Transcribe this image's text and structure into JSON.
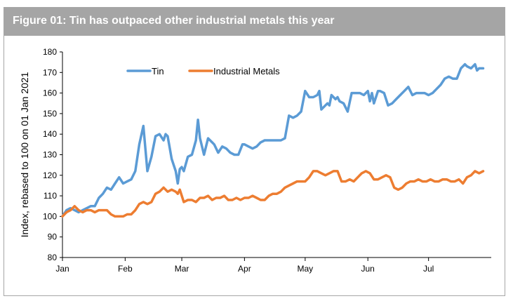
{
  "chart_data": {
    "type": "line",
    "title": "Figure 01: Tin has outpaced other industrial metals this year",
    "xlabel": "",
    "ylabel": "Index, rebased to 100 on 01 Jan 2021",
    "ylim": [
      80,
      180
    ],
    "yticks": [
      80,
      90,
      100,
      110,
      120,
      130,
      140,
      150,
      160,
      170,
      180
    ],
    "xticks": [
      {
        "label": "Jan",
        "day": 1
      },
      {
        "label": "Feb",
        "day": 32
      },
      {
        "label": "Mar",
        "day": 60
      },
      {
        "label": "Apr",
        "day": 91
      },
      {
        "label": "May",
        "day": 121
      },
      {
        "label": "Jun",
        "day": 152
      },
      {
        "label": "Jul",
        "day": 182
      }
    ],
    "xlim": [
      1,
      213
    ],
    "legend_position": "top-left",
    "grid": false,
    "series": [
      {
        "name": "Tin",
        "color": "#5b9bd5",
        "x": [
          1,
          3,
          5,
          7,
          9,
          11,
          13,
          15,
          17,
          19,
          21,
          23,
          25,
          27,
          29,
          31,
          33,
          35,
          37,
          39,
          41,
          43,
          45,
          47,
          49,
          51,
          52,
          53,
          55,
          57,
          58,
          59,
          60,
          61,
          63,
          65,
          67,
          68,
          69,
          71,
          73,
          75,
          76,
          78,
          80,
          82,
          84,
          86,
          88,
          90,
          91,
          93,
          95,
          97,
          99,
          101,
          103,
          105,
          107,
          109,
          111,
          113,
          115,
          117,
          118,
          119,
          121,
          123,
          125,
          127,
          128,
          129,
          131,
          132,
          133,
          134,
          136,
          137,
          138,
          140,
          142,
          144,
          146,
          148,
          150,
          152,
          153,
          154,
          155,
          157,
          158,
          160,
          162,
          164,
          166,
          168,
          170,
          172,
          174,
          176,
          178,
          180,
          182,
          184,
          186,
          188,
          190,
          192,
          194,
          196,
          198,
          200,
          201,
          203,
          205,
          206,
          207,
          208,
          209
        ],
        "values": [
          100,
          103,
          104,
          103,
          102,
          103,
          104,
          105,
          105,
          109,
          111,
          114,
          113,
          116,
          119,
          116,
          117,
          118,
          122,
          135,
          144,
          122,
          129,
          139,
          140,
          137,
          140,
          139,
          128,
          122,
          116,
          123,
          124,
          122,
          129,
          130,
          137,
          147,
          138,
          130,
          138,
          136,
          135,
          131,
          134,
          133,
          131,
          130,
          130,
          135,
          135,
          134,
          133,
          134,
          136,
          137,
          137,
          137,
          137,
          137,
          138,
          149,
          148,
          149,
          150,
          151,
          161,
          158,
          158,
          159,
          161,
          152,
          154,
          155,
          154,
          159,
          157,
          158,
          156,
          155,
          151,
          160,
          160,
          160,
          159,
          161,
          156,
          160,
          155,
          161,
          161,
          160,
          154,
          155,
          157,
          159,
          161,
          163,
          159,
          160,
          160,
          160,
          159,
          160,
          162,
          164,
          167,
          168,
          167,
          167,
          172,
          174,
          173,
          172,
          174,
          171,
          172,
          172,
          172
        ]
      },
      {
        "name": "Industrial Metals",
        "color": "#ed7d31",
        "x": [
          1,
          3,
          5,
          7,
          9,
          11,
          13,
          15,
          17,
          19,
          21,
          23,
          25,
          27,
          29,
          31,
          33,
          35,
          37,
          39,
          41,
          43,
          45,
          47,
          49,
          51,
          53,
          55,
          57,
          58,
          59,
          61,
          63,
          65,
          67,
          69,
          71,
          73,
          75,
          77,
          79,
          81,
          83,
          85,
          87,
          89,
          91,
          93,
          95,
          97,
          99,
          101,
          103,
          105,
          107,
          109,
          111,
          113,
          115,
          117,
          119,
          121,
          123,
          125,
          127,
          129,
          131,
          133,
          135,
          137,
          139,
          141,
          143,
          145,
          147,
          149,
          151,
          153,
          155,
          157,
          159,
          161,
          163,
          165,
          167,
          169,
          171,
          173,
          175,
          177,
          179,
          181,
          183,
          185,
          187,
          189,
          191,
          193,
          195,
          197,
          199,
          201,
          203,
          205,
          207,
          209
        ],
        "values": [
          100,
          102,
          103,
          105,
          103,
          102,
          103,
          103,
          102,
          103,
          103,
          103,
          101,
          100,
          100,
          100,
          101,
          101,
          103,
          106,
          107,
          106,
          107,
          111,
          112,
          114,
          112,
          113,
          112,
          111,
          113,
          107,
          108,
          108,
          107,
          109,
          109,
          110,
          108,
          109,
          109,
          110,
          108,
          108,
          109,
          108,
          109,
          109,
          110,
          109,
          108,
          108,
          110,
          111,
          111,
          112,
          114,
          115,
          116,
          117,
          117,
          117,
          119,
          122,
          122,
          121,
          120,
          121,
          122,
          122,
          117,
          117,
          118,
          117,
          119,
          121,
          122,
          121,
          118,
          118,
          119,
          120,
          119,
          114,
          113,
          114,
          116,
          117,
          117,
          118,
          117,
          117,
          118,
          117,
          117,
          118,
          118,
          117,
          117,
          118,
          116,
          119,
          120,
          122,
          121,
          122
        ]
      }
    ]
  }
}
